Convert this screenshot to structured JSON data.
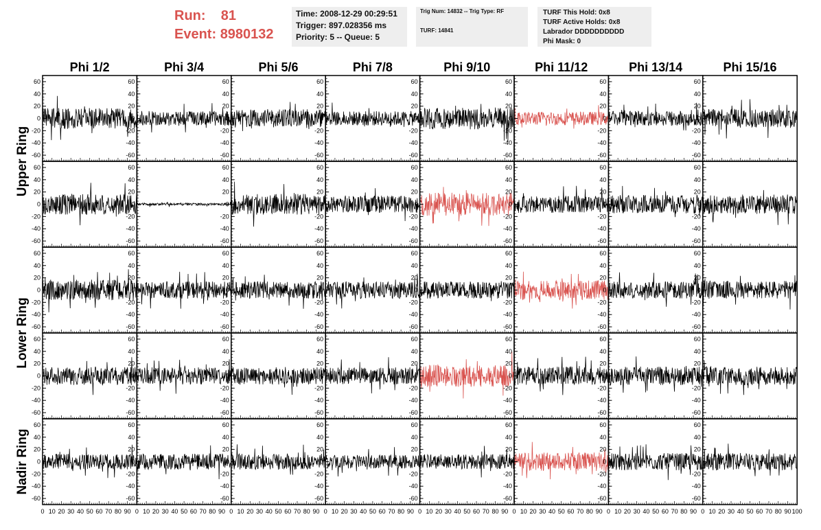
{
  "header": {
    "run_label": "Run:",
    "run_value": "81",
    "event_label": "Event:",
    "event_value": "8980132"
  },
  "time_box": {
    "time": "Time: 2008-12-29 00:29:51",
    "trigger": "Trigger: 897.028356 ms",
    "priority": "Priority: 5 -- Queue: 5"
  },
  "trig_box": {
    "line1": "Trig Num: 14832 -- Trig Type: RF",
    "line2": "TURF: 14841"
  },
  "turf_box": {
    "this_hold": "TURF This Hold: 0x8",
    "active_holds": "TURF Active Holds: 0x8",
    "labrador": "Labrador DDDDDDDDDD",
    "phi_mask": "Phi Mask: 0"
  },
  "colors": {
    "trace_normal": "#000000",
    "trace_highlight": "#d9534f",
    "header_red": "#d9534f"
  },
  "chart_data": {
    "type": "line",
    "columns": [
      "Phi 1/2",
      "Phi 3/4",
      "Phi 5/6",
      "Phi 7/8",
      "Phi 9/10",
      "Phi 11/12",
      "Phi 13/14",
      "Phi 15/16"
    ],
    "row_labels": [
      {
        "text": "Upper Ring",
        "rows": [
          0,
          1
        ]
      },
      {
        "text": "Lower Ring",
        "rows": [
          2,
          3
        ]
      },
      {
        "text": "Nadir Ring",
        "rows": [
          4,
          4
        ]
      }
    ],
    "xlim": [
      0,
      100
    ],
    "ylim": [
      -70,
      70
    ],
    "x_ticks": [
      0,
      10,
      20,
      30,
      40,
      50,
      60,
      70,
      80,
      90
    ],
    "x_last_tick": "100",
    "y_ticks": [
      60,
      40,
      20,
      0,
      -20,
      -40,
      -60
    ],
    "highlighted": [
      [
        0,
        5
      ],
      [
        1,
        4
      ],
      [
        2,
        5
      ],
      [
        3,
        4
      ],
      [
        4,
        5
      ]
    ],
    "panels": [
      [
        {
          "amp": 17,
          "seed": 1
        },
        {
          "amp": 12,
          "seed": 2
        },
        {
          "amp": 15,
          "seed": 3
        },
        {
          "amp": 12,
          "seed": 4
        },
        {
          "amp": 18,
          "seed": 5
        },
        {
          "amp": 11,
          "seed": 6
        },
        {
          "amp": 12,
          "seed": 7
        },
        {
          "amp": 15,
          "seed": 8
        }
      ],
      [
        {
          "amp": 17,
          "seed": 9
        },
        {
          "amp": 2,
          "seed": 10
        },
        {
          "amp": 17,
          "seed": 11
        },
        {
          "amp": 14,
          "seed": 12
        },
        {
          "amp": 19,
          "seed": 13
        },
        {
          "amp": 14,
          "seed": 14
        },
        {
          "amp": 15,
          "seed": 15
        },
        {
          "amp": 16,
          "seed": 16
        }
      ],
      [
        {
          "amp": 17,
          "seed": 17
        },
        {
          "amp": 14,
          "seed": 18
        },
        {
          "amp": 14,
          "seed": 19
        },
        {
          "amp": 14,
          "seed": 20
        },
        {
          "amp": 14,
          "seed": 21
        },
        {
          "amp": 16,
          "seed": 22
        },
        {
          "amp": 14,
          "seed": 23
        },
        {
          "amp": 15,
          "seed": 24
        }
      ],
      [
        {
          "amp": 15,
          "seed": 25
        },
        {
          "amp": 14,
          "seed": 26
        },
        {
          "amp": 14,
          "seed": 27
        },
        {
          "amp": 14,
          "seed": 28
        },
        {
          "amp": 18,
          "seed": 29
        },
        {
          "amp": 15,
          "seed": 30
        },
        {
          "amp": 15,
          "seed": 31
        },
        {
          "amp": 15,
          "seed": 32
        }
      ],
      [
        {
          "amp": 13,
          "seed": 33
        },
        {
          "amp": 13,
          "seed": 34
        },
        {
          "amp": 13,
          "seed": 35
        },
        {
          "amp": 11,
          "seed": 36
        },
        {
          "amp": 12,
          "seed": 37
        },
        {
          "amp": 15,
          "seed": 38
        },
        {
          "amp": 14,
          "seed": 39
        },
        {
          "amp": 14,
          "seed": 40
        }
      ]
    ]
  }
}
